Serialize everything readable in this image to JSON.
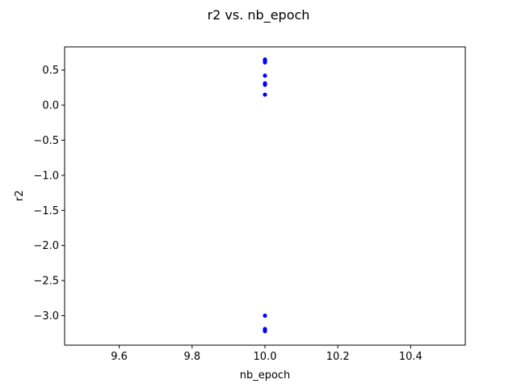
{
  "chart_data": {
    "type": "scatter",
    "title": "r2 vs. nb_epoch",
    "xlabel": "nb_epoch",
    "ylabel": "r2",
    "xlim": [
      9.45,
      10.55
    ],
    "ylim": [
      -3.42,
      0.83
    ],
    "xticks": [
      9.6,
      9.8,
      10.0,
      10.2,
      10.4
    ],
    "xtick_labels": [
      "9.6",
      "9.8",
      "10.0",
      "10.2",
      "10.4"
    ],
    "yticks": [
      0.5,
      0.0,
      -0.5,
      -1.0,
      -1.5,
      -2.0,
      -2.5,
      -3.0
    ],
    "ytick_labels": [
      "0.5",
      "0.0",
      "−0.5",
      "−1.0",
      "−1.5",
      "−2.0",
      "−2.5",
      "−3.0"
    ],
    "grid": false,
    "marker_color": "#0000ff",
    "series": [
      {
        "x": [
          10.0,
          10.0,
          10.0,
          10.0,
          10.0,
          10.0,
          10.0,
          10.0,
          10.0,
          10.0,
          10.0
        ],
        "y": [
          0.65,
          0.63,
          0.61,
          0.42,
          0.31,
          0.29,
          0.15,
          -3.0,
          -3.19,
          -3.2,
          -3.22
        ]
      }
    ]
  }
}
